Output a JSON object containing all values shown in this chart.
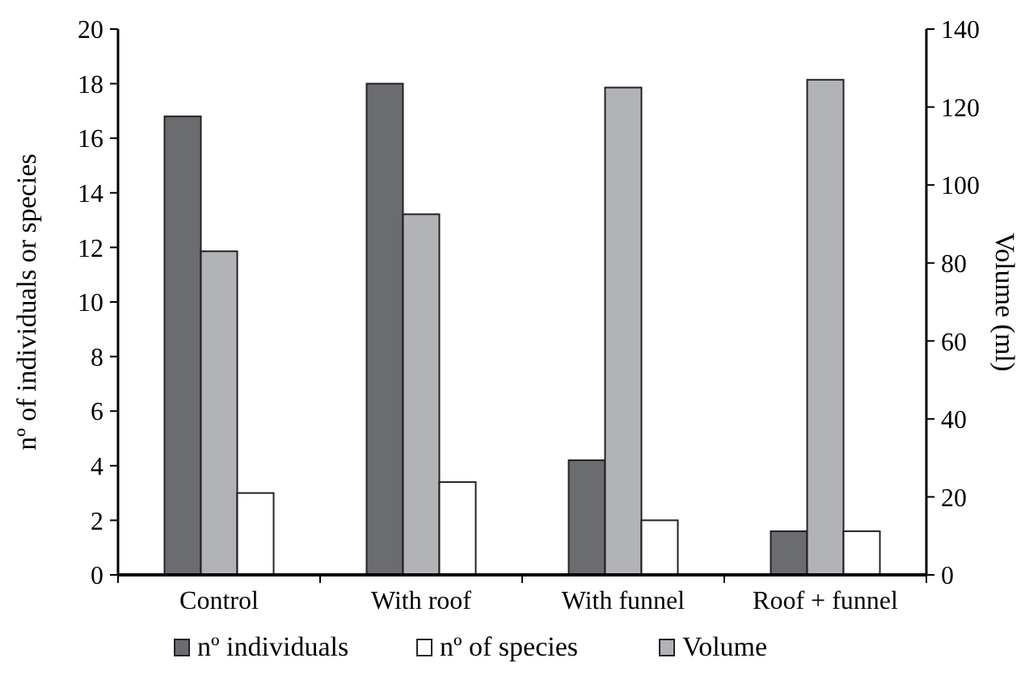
{
  "chart_data": {
    "type": "bar",
    "categories": [
      "Control",
      "With roof",
      "With funnel",
      "Roof + funnel"
    ],
    "ylabel": "nº of individuals or species",
    "y2label": "Volume (ml)",
    "ylim": [
      0,
      20
    ],
    "yticks": [
      0,
      2,
      4,
      6,
      8,
      10,
      12,
      14,
      16,
      18,
      20
    ],
    "y2lim": [
      0,
      140
    ],
    "y2ticks": [
      0,
      20,
      40,
      60,
      80,
      100,
      120,
      140
    ],
    "series": [
      {
        "name": "nº individuals",
        "color": "#6b6c70",
        "values": [
          16.8,
          18,
          4.2,
          1.6
        ]
      },
      {
        "name": "Volume",
        "color": "#b2b3b6",
        "values": [
          83,
          92.5,
          125,
          127
        ],
        "axis": "y2"
      },
      {
        "name": "nº of species",
        "color": "#ffffff",
        "values": [
          3,
          3.4,
          2,
          1.6
        ]
      }
    ],
    "legend": "bottom",
    "grid": false
  }
}
